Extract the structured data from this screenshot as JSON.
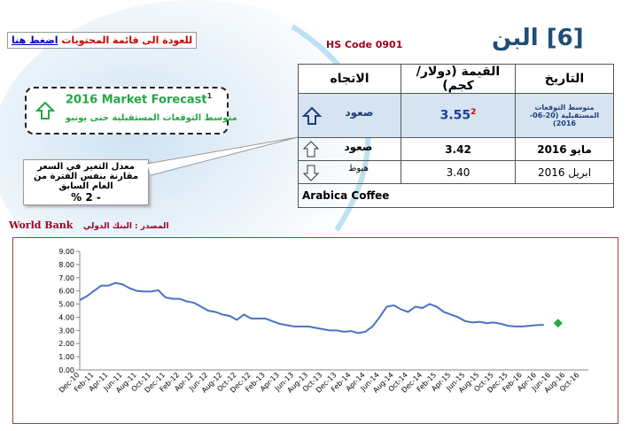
{
  "header": {
    "title": "[6] البن",
    "hs_code": "HS Code 0901",
    "back_text": "للعودة الى قائمة المحتويات",
    "back_link": "اضغط هنا"
  },
  "forecast": {
    "title": "2016 Market Forecast",
    "note": "1",
    "subtitle": "متوسط التوقعات المستقبلية حتى يونيو"
  },
  "callout": {
    "text": "معدل التغير في السعر مقارنة بنفس الفترة من العام السابق",
    "value": "- 2 %"
  },
  "source": {
    "label": "المصدر : البنك الدولي",
    "name": "World Bank"
  },
  "table": {
    "headers": [
      "التاريخ",
      "القيمة (دولار/كجم)",
      "الاتجاه"
    ],
    "rows": [
      {
        "date": "متوسط التوقعات المستقبلية (20-06-2016)",
        "value": "3.55",
        "note": "2",
        "direction": "صعود"
      },
      {
        "date": "مايو 2016",
        "value": "3.42",
        "direction": "صعود"
      },
      {
        "date": "ابريل 2016",
        "value": "3.40",
        "direction": "هبوط"
      }
    ],
    "footer": "Arabica Coffee"
  },
  "chart_data": {
    "type": "line",
    "categories": [
      "Dec-10",
      null,
      "Feb-11",
      null,
      "Apr-11",
      null,
      "Jun-11",
      null,
      "Aug-11",
      null,
      "Oct-11",
      null,
      "Dec-11",
      null,
      "Feb-12",
      null,
      "Apr-12",
      null,
      "Jun-12",
      null,
      "Aug-12",
      null,
      "Oct-12",
      null,
      "Dec-12",
      null,
      "Feb-13",
      null,
      "Apr-13",
      null,
      "Jun-13",
      null,
      "Aug-13",
      null,
      "Oct-13",
      null,
      "Dec-13",
      null,
      "Feb-14",
      null,
      "Apr-14",
      null,
      "Jun-14",
      null,
      "Aug-14",
      null,
      "Oct-14",
      null,
      "Dec-14",
      null,
      "Feb-15",
      null,
      "Apr-15",
      null,
      "Jun-15",
      null,
      "Aug-15",
      null,
      "Oct-15",
      null,
      "Dec-15",
      null,
      "Feb-16",
      null,
      "Apr-16",
      null,
      "Jun-16",
      null,
      "Aug-16",
      null,
      "Oct-16"
    ],
    "series": [
      {
        "color": "#4a72c4",
        "values": [
          5.3,
          5.6,
          6.0,
          6.4,
          6.4,
          6.6,
          6.5,
          6.2,
          6.0,
          5.95,
          5.95,
          6.05,
          5.5,
          5.4,
          5.4,
          5.2,
          5.1,
          4.8,
          4.5,
          4.4,
          4.2,
          4.1,
          3.8,
          4.2,
          3.9,
          3.9,
          3.9,
          3.7,
          3.5,
          3.4,
          3.3,
          3.3,
          3.3,
          3.2,
          3.1,
          3.0,
          3.0,
          2.9,
          2.95,
          2.8,
          2.9,
          3.3,
          4.0,
          4.8,
          4.9,
          4.6,
          4.4,
          4.8,
          4.7,
          5.0,
          4.8,
          4.4,
          4.2,
          4.0,
          3.7,
          3.6,
          3.65,
          3.55,
          3.6,
          3.5,
          3.35,
          3.3,
          3.3,
          3.35,
          3.4,
          3.42,
          null,
          null,
          null,
          null,
          null
        ]
      },
      {
        "color": "#22a845",
        "values": [
          null,
          null,
          null,
          null,
          null,
          null,
          null,
          null,
          null,
          null,
          null,
          null,
          null,
          null,
          null,
          null,
          null,
          null,
          null,
          null,
          null,
          null,
          null,
          null,
          null,
          null,
          null,
          null,
          null,
          null,
          null,
          null,
          null,
          null,
          null,
          null,
          null,
          null,
          null,
          null,
          null,
          null,
          null,
          null,
          null,
          null,
          null,
          null,
          null,
          null,
          null,
          null,
          null,
          null,
          null,
          null,
          null,
          null,
          null,
          null,
          null,
          null,
          null,
          null,
          null,
          null,
          null,
          3.55,
          null,
          null,
          null
        ]
      }
    ],
    "ylim": [
      0,
      9
    ],
    "yticks": [
      {
        "value": 0,
        "label": "0.00"
      },
      {
        "value": 1,
        "label": "1.00"
      },
      {
        "value": 2,
        "label": "2.00"
      },
      {
        "value": 3,
        "label": "3.00"
      },
      {
        "value": 4,
        "label": "4.00"
      },
      {
        "value": 5,
        "label": "5.00"
      },
      {
        "value": 6,
        "label": "6.00"
      },
      {
        "value": 7,
        "label": "7.00"
      },
      {
        "value": 8,
        "label": "8.00"
      },
      {
        "value": 9,
        "label": "9.00"
      }
    ]
  }
}
